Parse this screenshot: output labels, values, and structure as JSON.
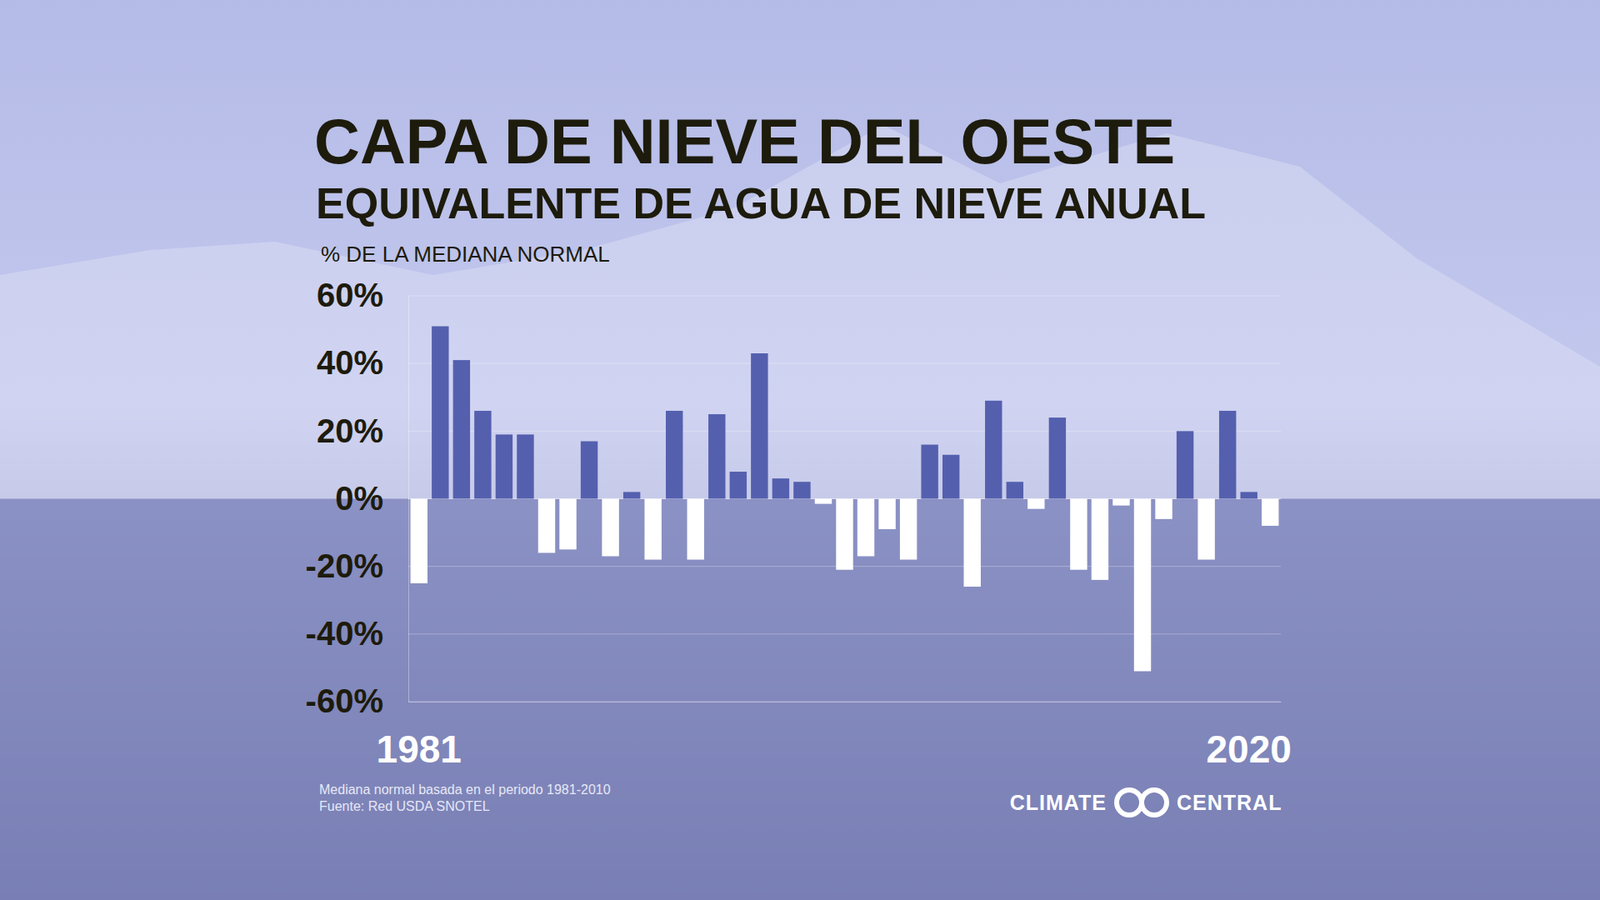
{
  "chart_data": {
    "type": "bar",
    "title": "CAPA DE NIEVE DEL OESTE",
    "subtitle": "EQUIVALENTE DE AGUA DE NIEVE ANUAL",
    "y_label": "% DE LA MEDIANA NORMAL",
    "categories": [
      "1981",
      null,
      null,
      null,
      null,
      null,
      null,
      null,
      null,
      null,
      null,
      null,
      null,
      null,
      null,
      null,
      null,
      null,
      null,
      null,
      null,
      null,
      null,
      null,
      null,
      null,
      null,
      null,
      null,
      null,
      null,
      null,
      null,
      null,
      null,
      null,
      null,
      null,
      null,
      "2020",
      null
    ],
    "values": [
      -25,
      51,
      41,
      26,
      19,
      19,
      -16,
      -15,
      17,
      -17,
      2,
      -18,
      26,
      -18,
      25,
      8,
      43,
      6,
      5,
      -1.5,
      -21,
      -17,
      -9,
      -18,
      16,
      13,
      -26,
      29,
      5,
      -3,
      24,
      -21,
      -24,
      -2,
      -51,
      -6,
      20,
      -18,
      26,
      2,
      -8
    ],
    "colors": [
      "#ffffff",
      "#5460ae",
      "#5460ae",
      "#5460ae",
      "#5460ae",
      "#5460ae",
      "#ffffff",
      "#ffffff",
      "#5460ae",
      "#ffffff",
      "#5460ae",
      "#ffffff",
      "#5460ae",
      "#ffffff",
      "#5460ae",
      "#5460ae",
      "#5460ae",
      "#5460ae",
      "#5460ae",
      "#ffffff",
      "#ffffff",
      "#ffffff",
      "#ffffff",
      "#ffffff",
      "#5460ae",
      "#5460ae",
      "#ffffff",
      "#5460ae",
      "#5460ae",
      "#ffffff",
      "#5460ae",
      "#ffffff",
      "#ffffff",
      "#ffffff",
      "#ffffff",
      "#ffffff",
      "#5460ae",
      "#ffffff",
      "#5460ae",
      "#5460ae",
      "#ffffff"
    ],
    "ylim": [
      -60,
      60
    ],
    "yticks": [
      {
        "value": 60,
        "label": "60%"
      },
      {
        "value": 40,
        "label": "40%"
      },
      {
        "value": 20,
        "label": "20%"
      },
      {
        "value": 0,
        "label": "0%"
      },
      {
        "value": -20,
        "label": "-20%"
      },
      {
        "value": -40,
        "label": "-40%"
      },
      {
        "value": -60,
        "label": "-60%"
      }
    ],
    "grid": true,
    "notes": [
      "Mediana normal basada en el periodo 1981-2010",
      "Fuente: Red USDA SNOTEL"
    ],
    "logo": [
      "CLIMATE",
      "CENTRAL"
    ]
  }
}
